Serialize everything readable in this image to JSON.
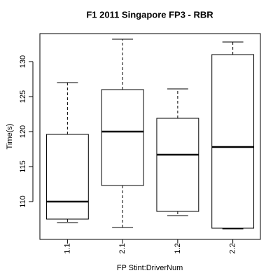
{
  "chart_data": {
    "type": "box",
    "title": "F1 2011 Singapore FP3 - RBR",
    "x_label": "FP Stint:DriverNum",
    "y_label": "Time(s)",
    "categories": [
      "1.1",
      "2.1",
      "1.2",
      "2.2"
    ],
    "min": [
      107.0,
      106.3,
      108.0,
      106.1
    ],
    "q1": [
      107.5,
      112.3,
      108.6,
      106.2
    ],
    "median": [
      110.0,
      120.0,
      116.7,
      117.8
    ],
    "q3": [
      119.6,
      126.0,
      121.9,
      131.0
    ],
    "max": [
      127.0,
      133.2,
      126.1,
      132.8
    ],
    "ylim": [
      104.6,
      134.0
    ],
    "yticks": [
      110,
      115,
      120,
      125,
      130
    ],
    "color": "#000000"
  }
}
